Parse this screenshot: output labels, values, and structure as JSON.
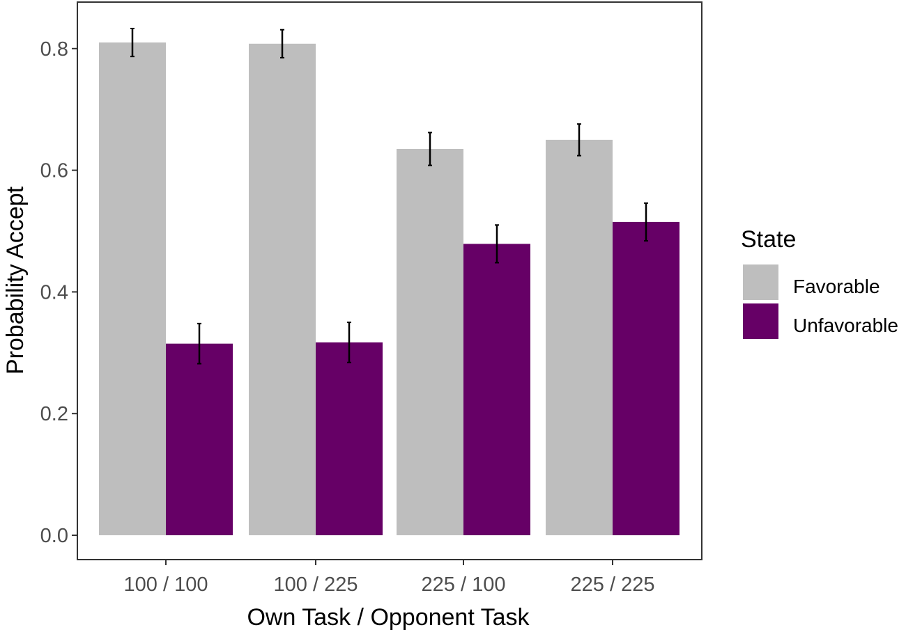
{
  "chart_data": {
    "type": "bar",
    "xlabel": "Own Task / Opponent Task",
    "ylabel": "Probability Accept",
    "categories": [
      "100 / 100",
      "100 / 225",
      "225 / 100",
      "225 / 225"
    ],
    "y_ticks": [
      "0.0",
      "0.2",
      "0.4",
      "0.6",
      "0.8"
    ],
    "y_tick_values": [
      0.0,
      0.2,
      0.4,
      0.6,
      0.8
    ],
    "ylim": [
      0,
      0.86
    ],
    "grid": false,
    "legend": {
      "title": "State",
      "position": "right"
    },
    "series": [
      {
        "name": "Favorable",
        "color": "#bebebe",
        "values": [
          0.81,
          0.808,
          0.635,
          0.65
        ],
        "error_low": [
          0.787,
          0.785,
          0.608,
          0.624
        ],
        "error_high": [
          0.833,
          0.831,
          0.662,
          0.676
        ]
      },
      {
        "name": "Unfavorable",
        "color": "#660066",
        "values": [
          0.315,
          0.317,
          0.479,
          0.515
        ],
        "error_low": [
          0.282,
          0.284,
          0.448,
          0.484
        ],
        "error_high": [
          0.348,
          0.35,
          0.51,
          0.546
        ]
      }
    ]
  }
}
